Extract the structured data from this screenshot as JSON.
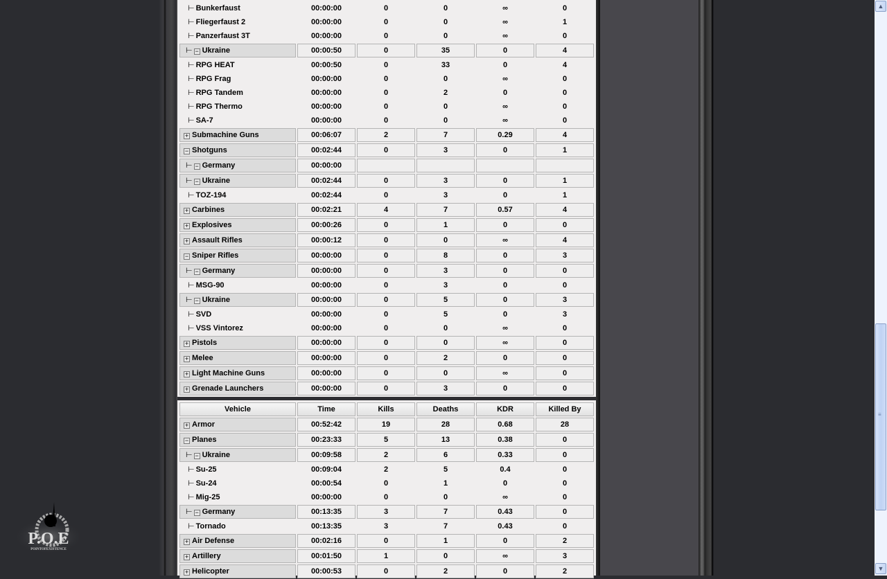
{
  "logo": {
    "text": "P.O.E",
    "subtitle": "POINTOFEXISTENCE"
  },
  "weapons_rows": [
    {
      "t": "leaf",
      "n": "Bunkerfaust",
      "v": [
        "00:00:00",
        "0",
        "0",
        "∞",
        "0"
      ]
    },
    {
      "t": "leaf",
      "n": "Fliegerfaust 2",
      "v": [
        "00:00:00",
        "0",
        "0",
        "∞",
        "1"
      ]
    },
    {
      "t": "leaf",
      "n": "Panzerfaust 3T",
      "v": [
        "00:00:00",
        "0",
        "0",
        "∞",
        "0"
      ]
    },
    {
      "t": "g2",
      "n": "Ukraine",
      "open": true,
      "v": [
        "00:00:50",
        "0",
        "35",
        "0",
        "4"
      ]
    },
    {
      "t": "leaf",
      "n": "RPG HEAT",
      "v": [
        "00:00:50",
        "0",
        "33",
        "0",
        "4"
      ]
    },
    {
      "t": "leaf",
      "n": "RPG Frag",
      "v": [
        "00:00:00",
        "0",
        "0",
        "∞",
        "0"
      ]
    },
    {
      "t": "leaf",
      "n": "RPG Tandem",
      "v": [
        "00:00:00",
        "0",
        "2",
        "0",
        "0"
      ]
    },
    {
      "t": "leaf",
      "n": "RPG Thermo",
      "v": [
        "00:00:00",
        "0",
        "0",
        "∞",
        "0"
      ]
    },
    {
      "t": "leaf",
      "n": "SA-7",
      "v": [
        "00:00:00",
        "0",
        "0",
        "∞",
        "0"
      ]
    },
    {
      "t": "g1",
      "n": "Submachine Guns",
      "open": false,
      "v": [
        "00:06:07",
        "2",
        "7",
        "0.29",
        "4"
      ]
    },
    {
      "t": "g1",
      "n": "Shotguns",
      "open": true,
      "v": [
        "00:02:44",
        "0",
        "3",
        "0",
        "1"
      ]
    },
    {
      "t": "g2",
      "n": "Germany",
      "open": true,
      "v": [
        "00:00:00",
        "",
        "",
        "",
        ""
      ]
    },
    {
      "t": "g2",
      "n": "Ukraine",
      "open": true,
      "v": [
        "00:02:44",
        "0",
        "3",
        "0",
        "1"
      ]
    },
    {
      "t": "leaf",
      "n": "TOZ-194",
      "v": [
        "00:02:44",
        "0",
        "3",
        "0",
        "1"
      ]
    },
    {
      "t": "g1",
      "n": "Carbines",
      "open": false,
      "v": [
        "00:02:21",
        "4",
        "7",
        "0.57",
        "4"
      ]
    },
    {
      "t": "g1",
      "n": "Explosives",
      "open": false,
      "v": [
        "00:00:26",
        "0",
        "1",
        "0",
        "0"
      ]
    },
    {
      "t": "g1",
      "n": "Assault Rifles",
      "open": false,
      "v": [
        "00:00:12",
        "0",
        "0",
        "∞",
        "4"
      ]
    },
    {
      "t": "g1",
      "n": "Sniper Rifles",
      "open": true,
      "v": [
        "00:00:00",
        "0",
        "8",
        "0",
        "3"
      ]
    },
    {
      "t": "g2",
      "n": "Germany",
      "open": true,
      "v": [
        "00:00:00",
        "0",
        "3",
        "0",
        "0"
      ]
    },
    {
      "t": "leaf",
      "n": "MSG-90",
      "v": [
        "00:00:00",
        "0",
        "3",
        "0",
        "0"
      ]
    },
    {
      "t": "g2",
      "n": "Ukraine",
      "open": true,
      "v": [
        "00:00:00",
        "0",
        "5",
        "0",
        "3"
      ]
    },
    {
      "t": "leaf",
      "n": "SVD",
      "v": [
        "00:00:00",
        "0",
        "5",
        "0",
        "3"
      ]
    },
    {
      "t": "leaf",
      "n": "VSS Vintorez",
      "v": [
        "00:00:00",
        "0",
        "0",
        "∞",
        "0"
      ]
    },
    {
      "t": "g1",
      "n": "Pistols",
      "open": false,
      "v": [
        "00:00:00",
        "0",
        "0",
        "∞",
        "0"
      ]
    },
    {
      "t": "g1",
      "n": "Melee",
      "open": false,
      "v": [
        "00:00:00",
        "0",
        "2",
        "0",
        "0"
      ]
    },
    {
      "t": "g1",
      "n": "Light Machine Guns",
      "open": false,
      "v": [
        "00:00:00",
        "0",
        "0",
        "∞",
        "0"
      ]
    },
    {
      "t": "g1",
      "n": "Grenade Launchers",
      "open": false,
      "v": [
        "00:00:00",
        "0",
        "3",
        "0",
        "0"
      ]
    }
  ],
  "vehicle_headers": [
    "Vehicle",
    "Time",
    "Kills",
    "Deaths",
    "KDR",
    "Killed By"
  ],
  "vehicle_rows": [
    {
      "t": "g1",
      "n": "Armor",
      "open": false,
      "v": [
        "00:52:42",
        "19",
        "28",
        "0.68",
        "28"
      ]
    },
    {
      "t": "g1",
      "n": "Planes",
      "open": true,
      "v": [
        "00:23:33",
        "5",
        "13",
        "0.38",
        "0"
      ]
    },
    {
      "t": "g2",
      "n": "Ukraine",
      "open": true,
      "v": [
        "00:09:58",
        "2",
        "6",
        "0.33",
        "0"
      ]
    },
    {
      "t": "leaf",
      "n": "Su-25",
      "v": [
        "00:09:04",
        "2",
        "5",
        "0.4",
        "0"
      ]
    },
    {
      "t": "leaf",
      "n": "Su-24",
      "v": [
        "00:00:54",
        "0",
        "1",
        "0",
        "0"
      ]
    },
    {
      "t": "leaf",
      "n": "Mig-25",
      "v": [
        "00:00:00",
        "0",
        "0",
        "∞",
        "0"
      ]
    },
    {
      "t": "g2",
      "n": "Germany",
      "open": true,
      "v": [
        "00:13:35",
        "3",
        "7",
        "0.43",
        "0"
      ]
    },
    {
      "t": "leaf",
      "n": "Tornado",
      "v": [
        "00:13:35",
        "3",
        "7",
        "0.43",
        "0"
      ]
    },
    {
      "t": "g1",
      "n": "Air Defense",
      "open": false,
      "v": [
        "00:02:16",
        "0",
        "1",
        "0",
        "2"
      ]
    },
    {
      "t": "g1",
      "n": "Artillery",
      "open": false,
      "v": [
        "00:01:50",
        "1",
        "0",
        "∞",
        "3"
      ]
    },
    {
      "t": "g1",
      "n": "Helicopter",
      "open": false,
      "v": [
        "00:00:53",
        "0",
        "2",
        "0",
        "2"
      ]
    }
  ],
  "scrollbar": {
    "position_percent": 58
  }
}
